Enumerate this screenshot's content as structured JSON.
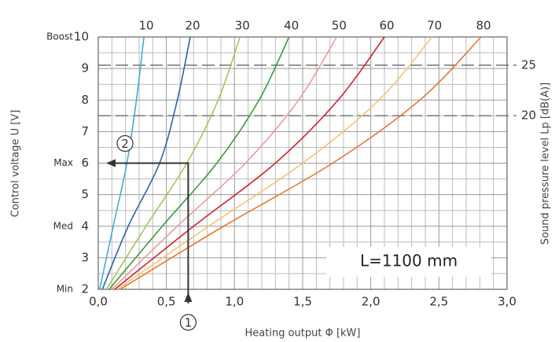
{
  "chart_data": {
    "type": "line",
    "xlabel": "Heating output Φ [kW]",
    "ylabel": "Control voltage U [V]",
    "y2label": "Sound pressure level Lp [dB(A)]",
    "xlim": [
      0,
      3
    ],
    "ylim": [
      2,
      10
    ],
    "y2lim": [
      2.8,
      27.8
    ],
    "xticks": [
      {
        "value": 0,
        "label": "0,0"
      },
      {
        "value": 0.5,
        "label": "0,5"
      },
      {
        "value": 1,
        "label": "1,0"
      },
      {
        "value": 1.5,
        "label": "1,5"
      },
      {
        "value": 2,
        "label": "2,0"
      },
      {
        "value": 2.5,
        "label": "2,5"
      },
      {
        "value": 3,
        "label": "3,0"
      }
    ],
    "yticks": [
      2,
      3,
      4,
      5,
      6,
      7,
      8,
      9,
      10
    ],
    "y2ticks": [
      20,
      25
    ],
    "ytick_names": [
      {
        "value": 10,
        "label": "Boost"
      },
      {
        "value": 6,
        "label": "Max"
      },
      {
        "value": 4,
        "label": "Med"
      },
      {
        "value": 2,
        "label": "Min"
      }
    ],
    "grid": true,
    "series": [
      {
        "name": "10",
        "color": "#3bb0da",
        "x": [
          0.01,
          0.11,
          0.21,
          0.28,
          0.335
        ],
        "values": [
          2,
          4,
          6,
          8,
          10
        ]
      },
      {
        "name": "20",
        "color": "#2a66a6",
        "x": [
          0.03,
          0.22,
          0.45,
          0.58,
          0.675
        ],
        "values": [
          2,
          4,
          6,
          8,
          10
        ]
      },
      {
        "name": "30",
        "color": "#9cc85a",
        "x": [
          0.06,
          0.35,
          0.65,
          0.88,
          1.04
        ],
        "values": [
          2,
          4,
          6,
          8,
          10
        ]
      },
      {
        "name": "40",
        "color": "#3a9a3e",
        "x": [
          0.08,
          0.47,
          0.87,
          1.18,
          1.4
        ],
        "values": [
          2,
          4,
          6,
          8,
          10
        ]
      },
      {
        "name": "50",
        "color": "#ef9a9c",
        "x": [
          0.1,
          0.58,
          1.08,
          1.47,
          1.75
        ],
        "values": [
          2,
          4,
          6,
          8,
          10
        ]
      },
      {
        "name": "60",
        "color": "#d0202f",
        "x": [
          0.12,
          0.7,
          1.3,
          1.76,
          2.1
        ],
        "values": [
          2,
          4,
          6,
          8,
          10
        ]
      },
      {
        "name": "70",
        "color": "#f6c375",
        "x": [
          0.14,
          0.81,
          1.5,
          2.06,
          2.45
        ],
        "values": [
          2,
          4,
          6,
          8,
          10
        ]
      },
      {
        "name": "80",
        "color": "#e8772a",
        "x": [
          0.16,
          0.92,
          1.72,
          2.36,
          2.81
        ],
        "values": [
          2,
          4,
          6,
          8,
          10
        ]
      }
    ],
    "example_point": {
      "x": 0.66,
      "y": 6
    },
    "annotations": {
      "box": "L=1100 mm",
      "step1": "1",
      "step2": "2"
    }
  }
}
